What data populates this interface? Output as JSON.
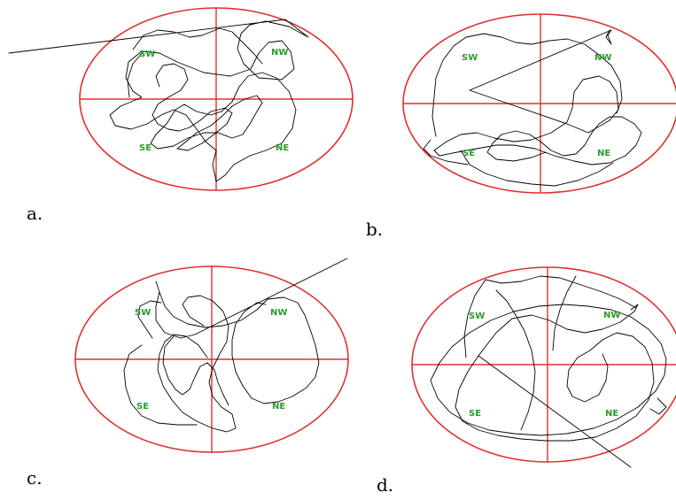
{
  "colors": {
    "circle": "#e03030",
    "quadrant_label": "#2a9d2a",
    "track": "#000000",
    "background": "#ffffff"
  },
  "quadrant_labels": {
    "sw": "SW",
    "nw": "NW",
    "se": "SE",
    "ne": "NE"
  },
  "panels": [
    {
      "id": "a",
      "caption": "a."
    },
    {
      "id": "b",
      "caption": "b."
    },
    {
      "id": "c",
      "caption": "c."
    },
    {
      "id": "d",
      "caption": "d."
    }
  ]
}
